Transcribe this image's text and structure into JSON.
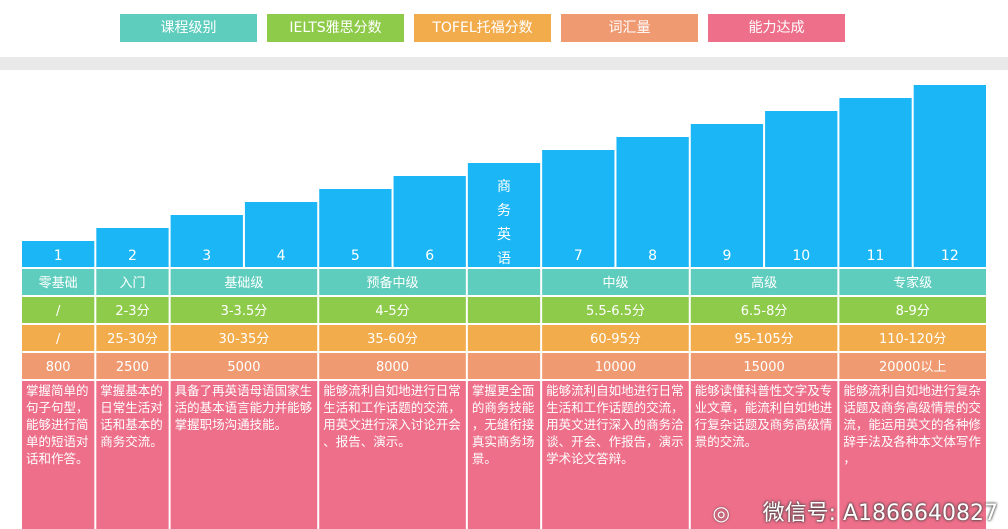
{
  "legend": [
    {
      "label": "课程级别",
      "color": "#5fcdbd"
    },
    {
      "label": "IELTS雅思分数",
      "color": "#8fcb4b"
    },
    {
      "label": "TOFEL托福分数",
      "color": "#f2ac4c"
    },
    {
      "label": "词汇量",
      "color": "#f09a72"
    },
    {
      "label": "能力达成",
      "color": "#ee6f8a"
    }
  ],
  "chart_data": {
    "type": "bar",
    "categories": [
      "1",
      "2",
      "3",
      "4",
      "5",
      "6",
      "商务英语",
      "7",
      "8",
      "9",
      "10",
      "11",
      "12"
    ],
    "values": [
      1,
      2,
      3,
      4,
      5,
      6,
      7,
      8,
      9,
      10,
      11,
      12,
      13
    ],
    "bar_color": "#1bb6f5"
  },
  "table": {
    "colors": {
      "level": "#5fcdbd",
      "ielts": "#8fcb4b",
      "toefl": "#f2ac4c",
      "vocab": "#f09a72",
      "ability": "#ee6f8a"
    },
    "groups": [
      {
        "level": "零基础",
        "ielts": "/",
        "toefl": "/",
        "vocab": "800",
        "ability": "掌握简单的句子句型，能够进行简单的短语对话和作答。"
      },
      {
        "level": "入门",
        "ielts": "2-3分",
        "toefl": "25-30分",
        "vocab": "2500",
        "ability": "掌握基本的日常生活对话和基本的商务交流。"
      },
      {
        "level": "基础级",
        "ielts": "3-3.5分",
        "toefl": "30-35分",
        "vocab": "5000",
        "ability": "具备了再英语母语国家生活的基本语言能力并能够掌握职场沟通技能。"
      },
      {
        "level": "预备中级",
        "ielts": "4-5分",
        "toefl": "35-60分",
        "vocab": "8000",
        "ability": "能够流利自如地进行日常生活和工作话题的交流，用英文进行深入讨论开会、报告、演示。"
      },
      {
        "level": "",
        "ielts": "",
        "toefl": "",
        "vocab": "",
        "ability": "掌握更全面的商务技能，无缝衔接真实商务场景。"
      },
      {
        "level": "中级",
        "ielts": "5.5-6.5分",
        "toefl": "60-95分",
        "vocab": "10000",
        "ability": "能够流利自如地进行日常生活和工作话题的交流，用英文进行深入的商务洽谈、开会、作报告，演示学术论文答辩。"
      },
      {
        "level": "高级",
        "ielts": "6.5-8分",
        "toefl": "95-105分",
        "vocab": "15000",
        "ability": "能够读懂科普性文字及专业文章，能流利自如地进行复杂话题及商务高级情景的交流。"
      },
      {
        "level": "专家级",
        "ielts": "8-9分",
        "toefl": "110-120分",
        "vocab": "20000以上",
        "ability": "能够流利自如地进行复杂话题及商务高级情景的交流，能运用英文的各种修辞手法及各种本文体写作，"
      }
    ]
  },
  "watermark": {
    "icon": "wechat-icon",
    "text": "微信号: A1866640827"
  }
}
